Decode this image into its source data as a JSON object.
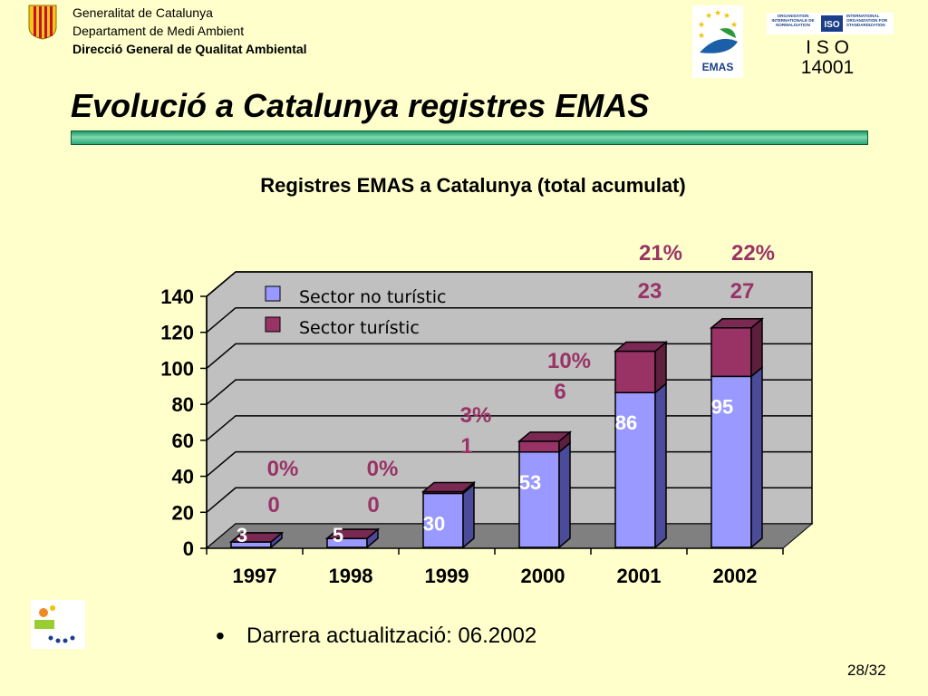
{
  "header": {
    "org_line1": "Generalitat de Catalunya",
    "org_line2": "Departament de Medi Ambient",
    "org_line3": "Direcció General de Qualitat Ambiental",
    "emas_logo_text": "EMAS",
    "iso_logo_left": "ORGANISATION INTERNATIONALE DE NORMALISATION",
    "iso_logo_mid": "ISO",
    "iso_logo_right": "INTERNATIONAL ORGANIZATION FOR STANDARDIZATION",
    "iso_label": "I S O",
    "iso_number": "14001"
  },
  "slide": {
    "title": "Evolució a Catalunya registres EMAS",
    "bullet": "Darrera actualització: 06.2002",
    "page": "28/32"
  },
  "colors": {
    "no_turistic": "#9999ff",
    "turistic": "#993366",
    "annotation": "#993366",
    "background": "#ffffcc"
  },
  "chart_data": {
    "type": "bar",
    "stacked": true,
    "three_d": true,
    "title": "Registres EMAS a Catalunya  (total acumulat)",
    "categories": [
      "1997",
      "1998",
      "1999",
      "2000",
      "2001",
      "2002"
    ],
    "series": [
      {
        "name": "Sector no turístic",
        "values": [
          3,
          5,
          30,
          53,
          86,
          95
        ],
        "labels": [
          "3",
          "5",
          "30",
          "53",
          "86",
          "95"
        ]
      },
      {
        "name": "Sector turístic",
        "values": [
          0,
          0,
          1,
          6,
          23,
          27
        ],
        "labels": [
          "0",
          "0",
          "1",
          "6",
          "23",
          "27"
        ]
      }
    ],
    "percent_labels": [
      "0%",
      "0%",
      "3%",
      "10%",
      "21%",
      "22%"
    ],
    "ylim": [
      0,
      140
    ],
    "yticks": [
      "0",
      "20",
      "40",
      "60",
      "80",
      "100",
      "120",
      "140"
    ],
    "grid": true,
    "legend_position": "top-left"
  }
}
